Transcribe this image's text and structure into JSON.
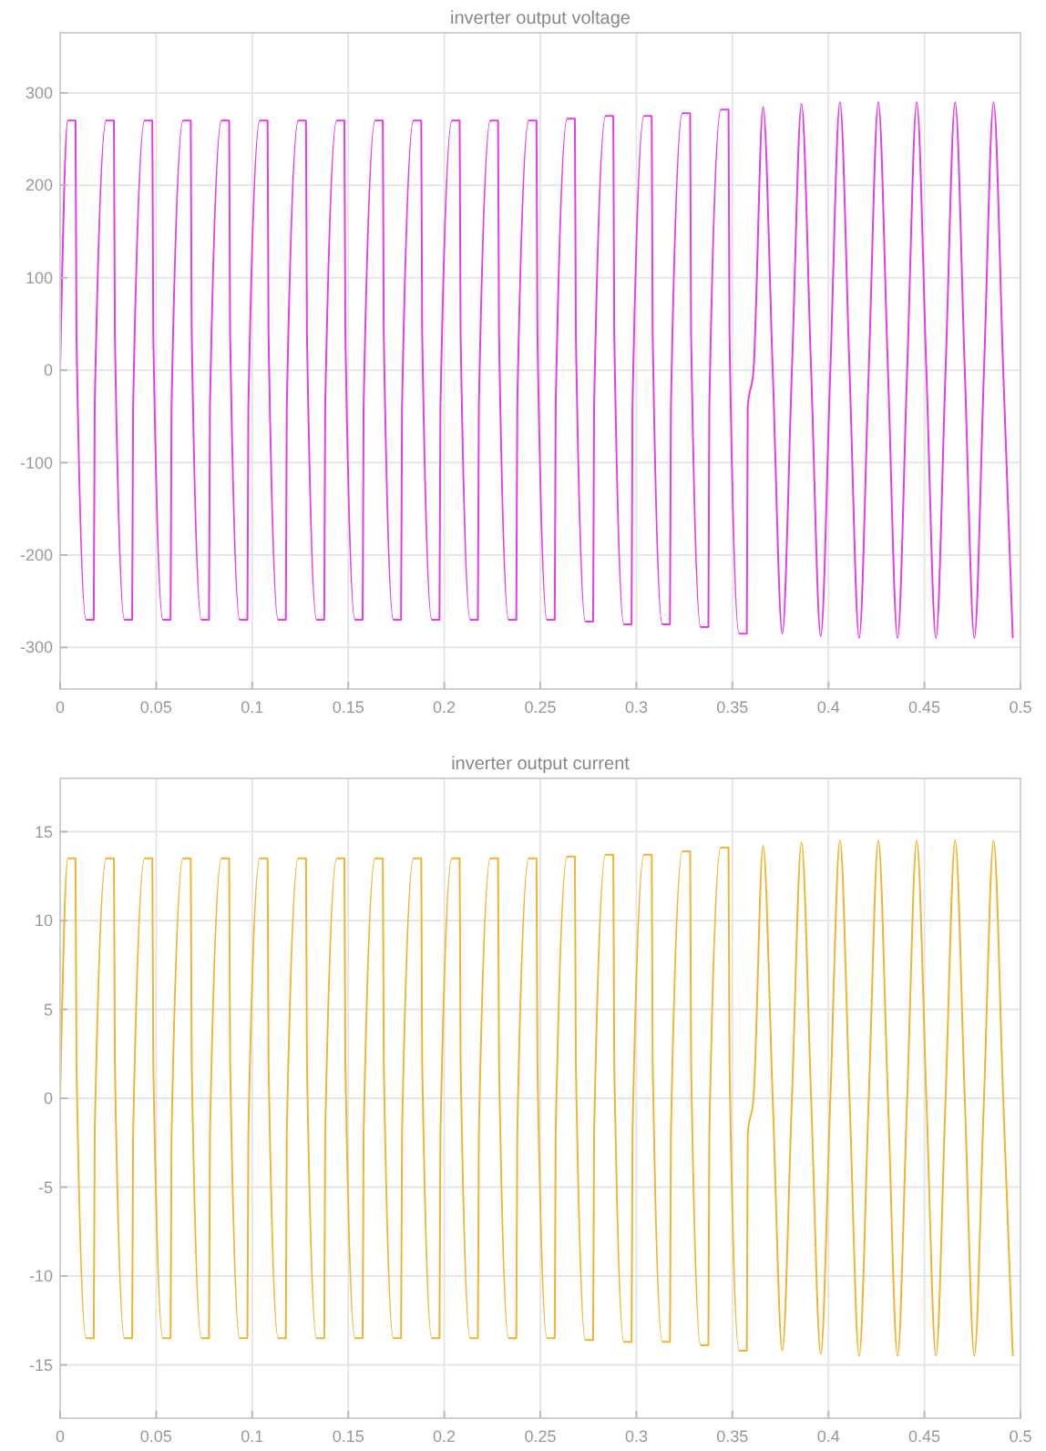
{
  "chart_data": [
    {
      "type": "line",
      "title": "inverter output voltage",
      "xlim": [
        0,
        0.5
      ],
      "xticks": [
        0,
        0.05,
        0.1,
        0.15,
        0.2,
        0.25,
        0.3,
        0.35,
        0.4,
        0.45,
        0.5
      ],
      "ylim": [
        -345,
        365
      ],
      "yticks": [
        -300,
        -200,
        -100,
        0,
        100,
        200,
        300
      ],
      "grid": true,
      "series": [
        {
          "color": "#e63ce6",
          "x": [
            0,
            0.004,
            0.008,
            0.0085,
            0.0135,
            0.0175,
            0.018,
            0.024,
            0.028,
            0.0285,
            0.0335,
            0.0375,
            0.038,
            0.044,
            0.048,
            0.0485,
            0.0535,
            0.0575,
            0.058,
            0.064,
            0.068,
            0.0685,
            0.0735,
            0.0775,
            0.078,
            0.084,
            0.088,
            0.0885,
            0.0935,
            0.0975,
            0.098,
            0.104,
            0.108,
            0.1085,
            0.1135,
            0.1175,
            0.118,
            0.124,
            0.128,
            0.1285,
            0.1335,
            0.1375,
            0.138,
            0.144,
            0.148,
            0.1485,
            0.1535,
            0.1575,
            0.158,
            0.164,
            0.168,
            0.1685,
            0.1735,
            0.1775,
            0.178,
            0.184,
            0.188,
            0.1885,
            0.1935,
            0.1975,
            0.198,
            0.204,
            0.208,
            0.2085,
            0.2135,
            0.2175,
            0.218,
            0.224,
            0.228,
            0.2285,
            0.2335,
            0.2375,
            0.238,
            0.244,
            0.248,
            0.2485,
            0.2535,
            0.2575,
            0.258,
            0.264,
            0.268,
            0.2685,
            0.2735,
            0.2775,
            0.278,
            0.284,
            0.288,
            0.2885,
            0.2935,
            0.2975,
            0.298,
            0.304,
            0.308,
            0.3085,
            0.3135,
            0.3175,
            0.318,
            0.324,
            0.328,
            0.3285,
            0.3335,
            0.3375,
            0.338,
            0.344,
            0.348,
            0.3485,
            0.3535,
            0.3575,
            0.358,
            0.361,
            0.366,
            0.371,
            0.376,
            0.381,
            0.386,
            0.391,
            0.396,
            0.401,
            0.406,
            0.411,
            0.416,
            0.421,
            0.426,
            0.431,
            0.436,
            0.441,
            0.446,
            0.451,
            0.456,
            0.461,
            0.466,
            0.471,
            0.476,
            0.481,
            0.486,
            0.491,
            0.496
          ],
          "values": [
            0,
            270,
            270,
            40,
            -270,
            -270,
            -40,
            270,
            270,
            40,
            -270,
            -270,
            -40,
            270,
            270,
            40,
            -270,
            -270,
            -40,
            270,
            270,
            40,
            -270,
            -270,
            -40,
            270,
            270,
            40,
            -270,
            -270,
            -40,
            270,
            270,
            40,
            -270,
            -270,
            -40,
            270,
            270,
            40,
            -270,
            -270,
            -40,
            270,
            270,
            40,
            -270,
            -270,
            -40,
            270,
            270,
            40,
            -270,
            -270,
            -40,
            270,
            270,
            40,
            -270,
            -270,
            -40,
            270,
            270,
            40,
            -270,
            -270,
            -40,
            270,
            270,
            40,
            -270,
            -270,
            -40,
            270,
            270,
            40,
            -270,
            -270,
            -40,
            272,
            272,
            40,
            -272,
            -272,
            -40,
            275,
            275,
            40,
            -275,
            -275,
            -40,
            275,
            275,
            40,
            -275,
            -275,
            -40,
            278,
            278,
            40,
            -278,
            -278,
            -40,
            282,
            282,
            40,
            -285,
            -285,
            -40,
            0,
            285,
            0,
            -285,
            0,
            288,
            0,
            -288,
            0,
            290,
            0,
            -290,
            0,
            290,
            0,
            -290,
            0,
            290,
            0,
            -290,
            0,
            290,
            0,
            -290,
            0,
            290,
            0,
            -290
          ]
        }
      ]
    },
    {
      "type": "line",
      "title": "inverter output current",
      "xlim": [
        0,
        0.5
      ],
      "xticks": [
        0,
        0.05,
        0.1,
        0.15,
        0.2,
        0.25,
        0.3,
        0.35,
        0.4,
        0.45,
        0.5
      ],
      "ylim": [
        -18,
        18
      ],
      "yticks": [
        -15,
        -10,
        -5,
        0,
        5,
        10,
        15
      ],
      "grid": true,
      "series": [
        {
          "color": "#f0b432",
          "x": [
            0,
            0.004,
            0.008,
            0.0085,
            0.0135,
            0.0175,
            0.018,
            0.024,
            0.028,
            0.0285,
            0.0335,
            0.0375,
            0.038,
            0.044,
            0.048,
            0.0485,
            0.0535,
            0.0575,
            0.058,
            0.064,
            0.068,
            0.0685,
            0.0735,
            0.0775,
            0.078,
            0.084,
            0.088,
            0.0885,
            0.0935,
            0.0975,
            0.098,
            0.104,
            0.108,
            0.1085,
            0.1135,
            0.1175,
            0.118,
            0.124,
            0.128,
            0.1285,
            0.1335,
            0.1375,
            0.138,
            0.144,
            0.148,
            0.1485,
            0.1535,
            0.1575,
            0.158,
            0.164,
            0.168,
            0.1685,
            0.1735,
            0.1775,
            0.178,
            0.184,
            0.188,
            0.1885,
            0.1935,
            0.1975,
            0.198,
            0.204,
            0.208,
            0.2085,
            0.2135,
            0.2175,
            0.218,
            0.224,
            0.228,
            0.2285,
            0.2335,
            0.2375,
            0.238,
            0.244,
            0.248,
            0.2485,
            0.2535,
            0.2575,
            0.258,
            0.264,
            0.268,
            0.2685,
            0.2735,
            0.2775,
            0.278,
            0.284,
            0.288,
            0.2885,
            0.2935,
            0.2975,
            0.298,
            0.304,
            0.308,
            0.3085,
            0.3135,
            0.3175,
            0.318,
            0.324,
            0.328,
            0.3285,
            0.3335,
            0.3375,
            0.338,
            0.344,
            0.348,
            0.3485,
            0.3535,
            0.3575,
            0.358,
            0.361,
            0.366,
            0.371,
            0.376,
            0.381,
            0.386,
            0.391,
            0.396,
            0.401,
            0.406,
            0.411,
            0.416,
            0.421,
            0.426,
            0.431,
            0.436,
            0.441,
            0.446,
            0.451,
            0.456,
            0.461,
            0.466,
            0.471,
            0.476,
            0.481,
            0.486,
            0.491,
            0.496
          ],
          "values": [
            0,
            13.5,
            13.5,
            2,
            -13.5,
            -13.5,
            -2,
            13.5,
            13.5,
            2,
            -13.5,
            -13.5,
            -2,
            13.5,
            13.5,
            2,
            -13.5,
            -13.5,
            -2,
            13.5,
            13.5,
            2,
            -13.5,
            -13.5,
            -2,
            13.5,
            13.5,
            2,
            -13.5,
            -13.5,
            -2,
            13.5,
            13.5,
            2,
            -13.5,
            -13.5,
            -2,
            13.5,
            13.5,
            2,
            -13.5,
            -13.5,
            -2,
            13.5,
            13.5,
            2,
            -13.5,
            -13.5,
            -2,
            13.5,
            13.5,
            2,
            -13.5,
            -13.5,
            -2,
            13.5,
            13.5,
            2,
            -13.5,
            -13.5,
            -2,
            13.5,
            13.5,
            2,
            -13.5,
            -13.5,
            -2,
            13.5,
            13.5,
            2,
            -13.5,
            -13.5,
            -2,
            13.5,
            13.5,
            2,
            -13.5,
            -13.5,
            -2,
            13.6,
            13.6,
            2,
            -13.6,
            -13.6,
            -2,
            13.7,
            13.7,
            2,
            -13.7,
            -13.7,
            -2,
            13.7,
            13.7,
            2,
            -13.7,
            -13.7,
            -2,
            13.9,
            13.9,
            2,
            -13.9,
            -13.9,
            -2,
            14.1,
            14.1,
            2,
            -14.2,
            -14.2,
            -2,
            0,
            14.2,
            0,
            -14.2,
            0,
            14.4,
            0,
            -14.4,
            0,
            14.5,
            0,
            -14.5,
            0,
            14.5,
            0,
            -14.5,
            0,
            14.5,
            0,
            -14.5,
            0,
            14.5,
            0,
            -14.5,
            0,
            14.5,
            0,
            -14.5
          ]
        }
      ]
    }
  ]
}
